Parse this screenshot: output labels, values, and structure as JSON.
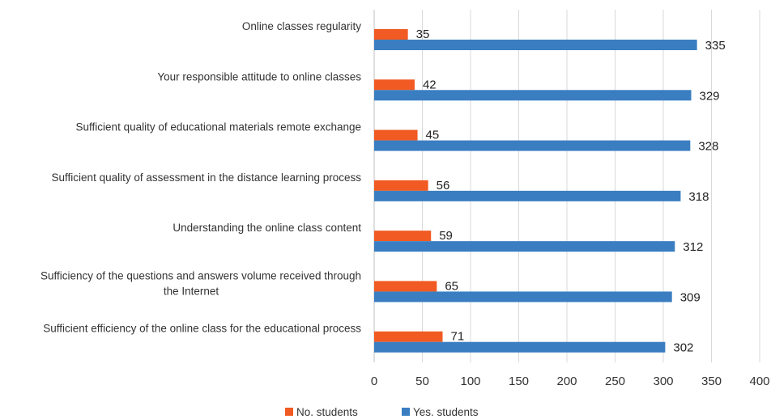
{
  "chart_data": {
    "type": "bar",
    "orientation": "horizontal",
    "categories": [
      [
        "Online classes regularity"
      ],
      [
        "Your responsible attitude to online classes"
      ],
      [
        "Sufficient quality  of educational materials remote exchange"
      ],
      [
        "Sufficient quality of assessment in the distance learning process"
      ],
      [
        "Understanding the online class content"
      ],
      [
        "Sufficiency of the questions and answers volume received through",
        "the Internet"
      ],
      [
        "Sufficient efficiency of the online class for the educational process"
      ]
    ],
    "series": [
      {
        "name": "No. students",
        "color": "#f15a22",
        "values": [
          35,
          42,
          45,
          56,
          59,
          65,
          71
        ]
      },
      {
        "name": "Yes. students",
        "color": "#3a7ec1",
        "values": [
          335,
          329,
          328,
          318,
          312,
          309,
          302
        ]
      }
    ],
    "xlim": [
      0,
      400
    ],
    "xticks": [
      "0",
      "50",
      "100",
      "150",
      "200",
      "250",
      "300",
      "350",
      "400"
    ],
    "grid": "vertical",
    "legend": "bottom-center",
    "title": "",
    "xlabel": "",
    "ylabel": ""
  }
}
